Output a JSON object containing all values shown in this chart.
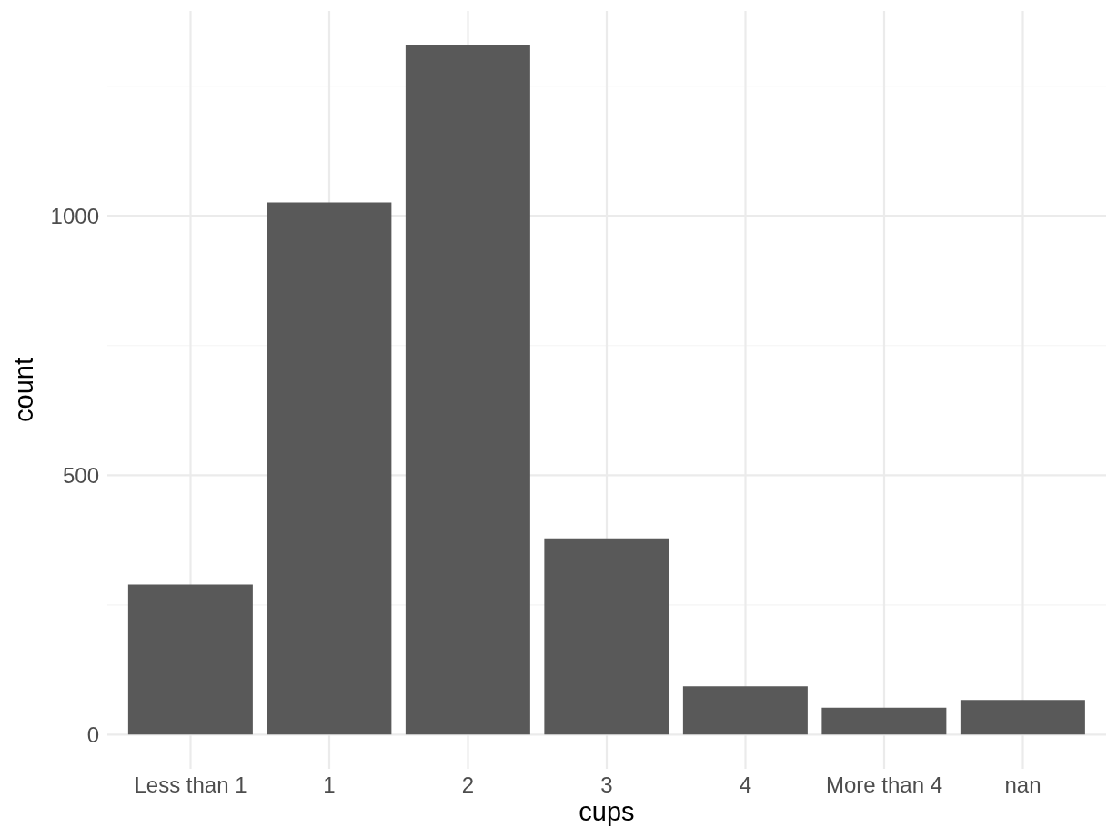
{
  "chart_data": {
    "type": "bar",
    "xlabel": "cups",
    "ylabel": "count",
    "categories": [
      "Less than 1",
      "1",
      "2",
      "3",
      "4",
      "More than 4",
      "nan"
    ],
    "values": [
      289,
      1026,
      1329,
      378,
      93,
      52,
      67
    ],
    "color": "#595959",
    "ylim": [
      -66,
      1395
    ],
    "yticks": [
      0,
      {
        "value": 250,
        "label": null
      },
      500,
      {
        "value": 750,
        "label": null
      },
      1000,
      {
        "value": 1250,
        "label": null
      }
    ],
    "grid": true
  }
}
